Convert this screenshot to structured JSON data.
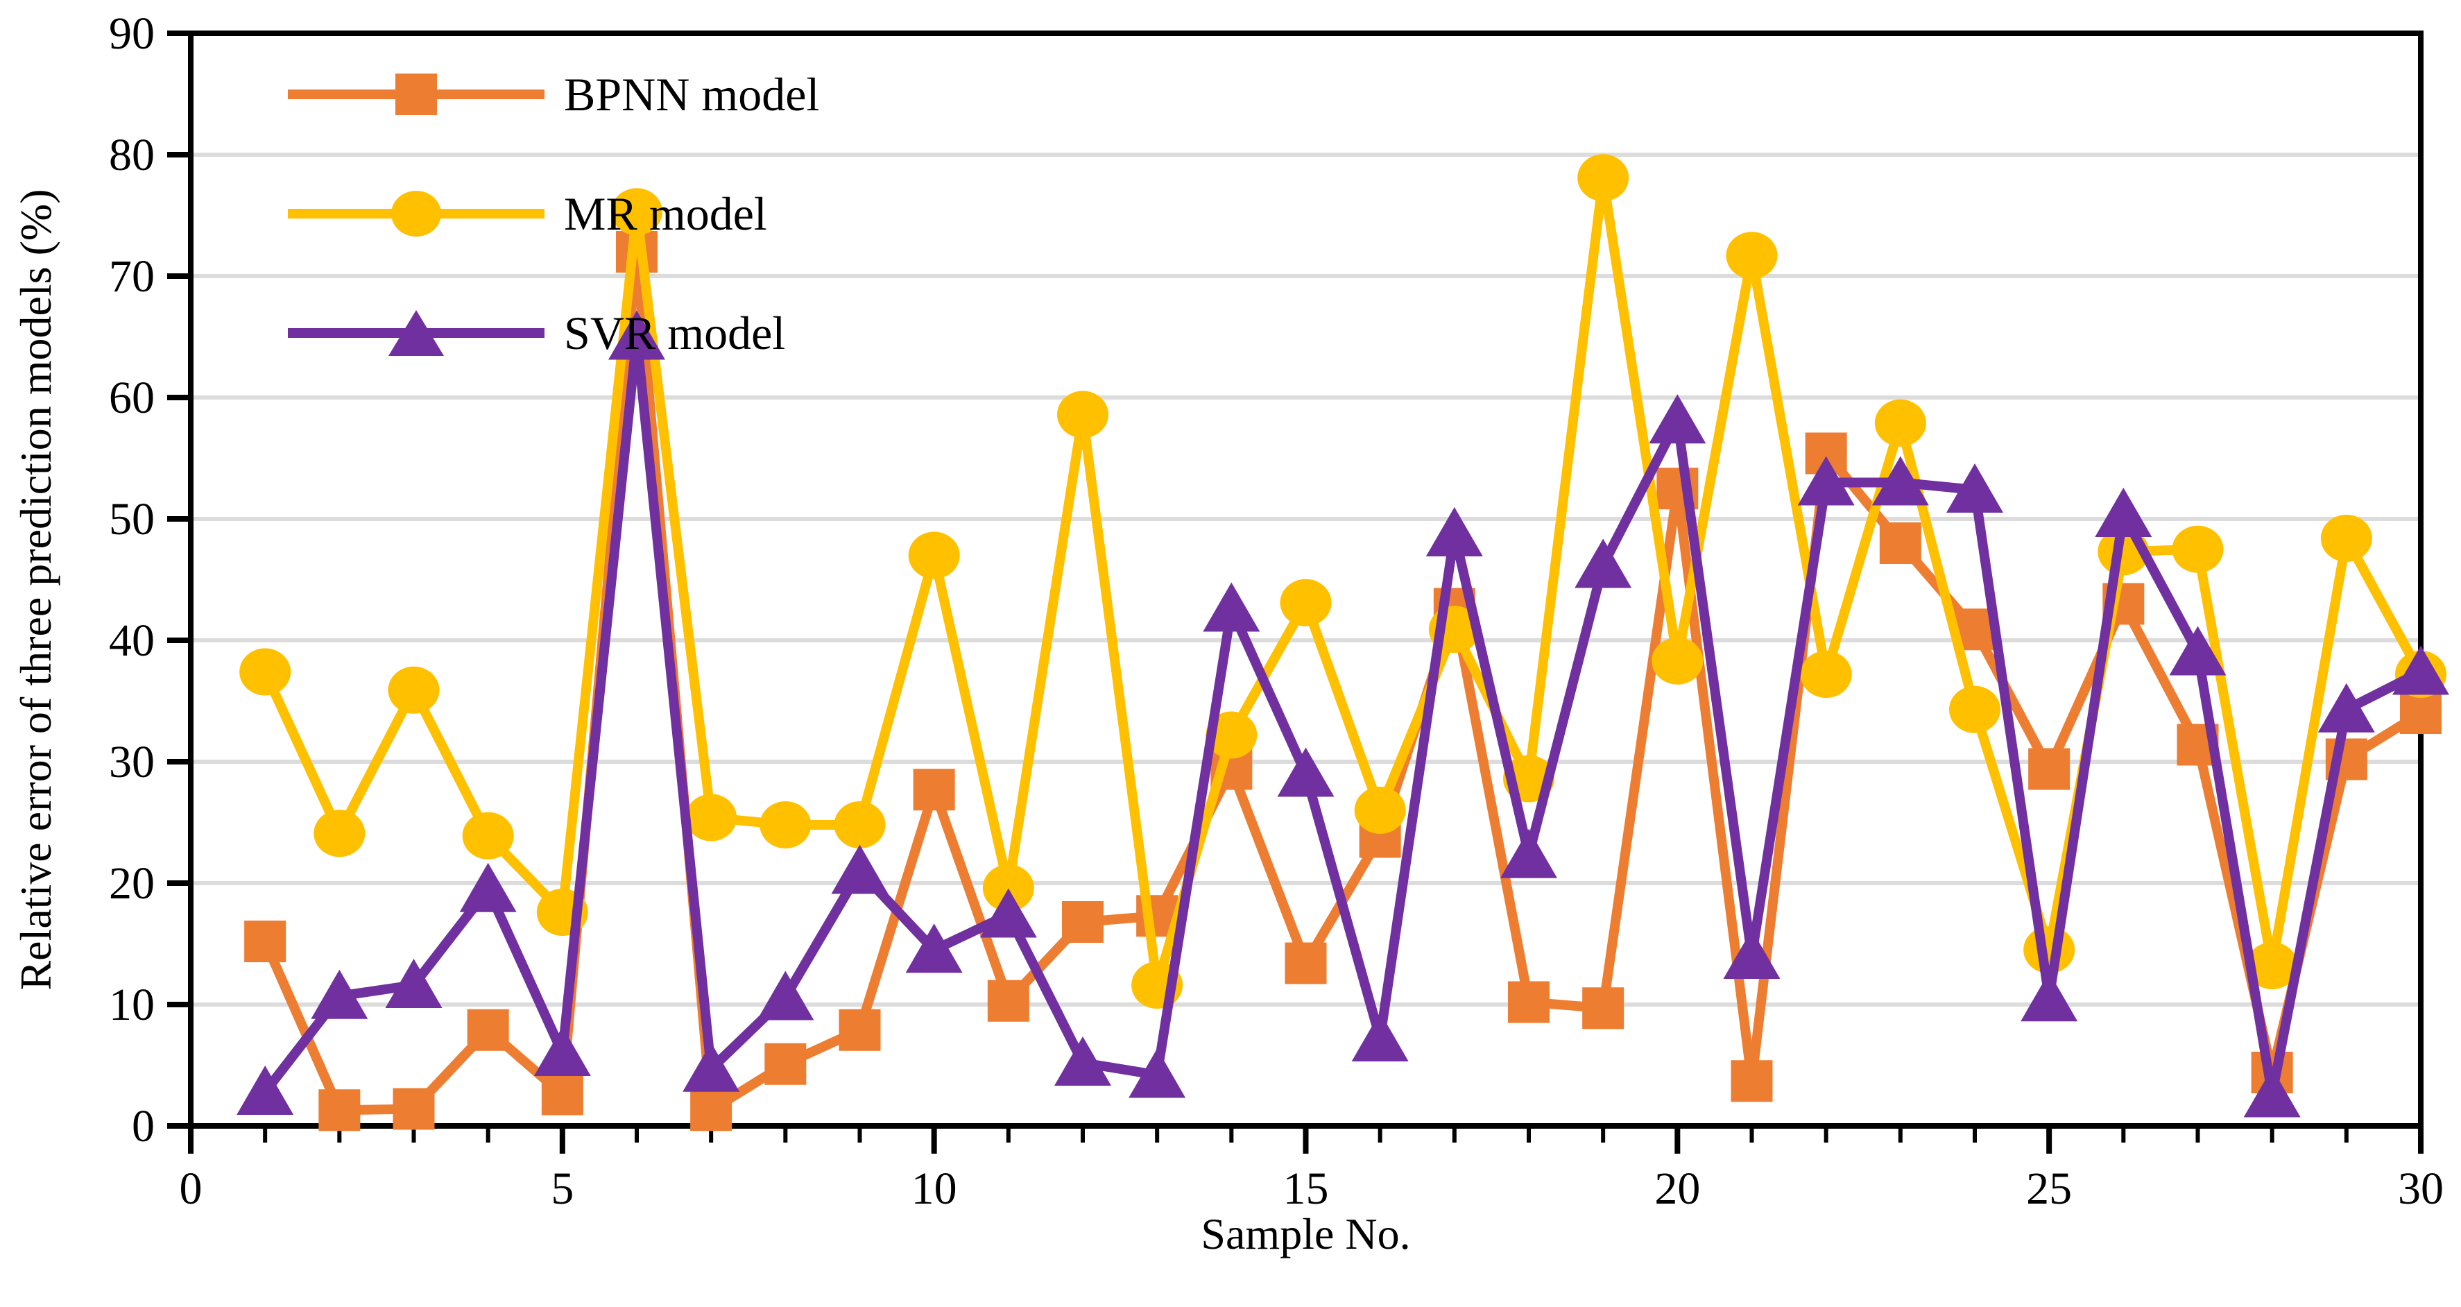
{
  "chart_data": {
    "type": "line",
    "title": "",
    "xlabel": "Sample No.",
    "ylabel": "Relative error of three prediction models (%)",
    "xlim": [
      0,
      30
    ],
    "ylim": [
      0,
      90
    ],
    "x_ticks": [
      0,
      5,
      10,
      15,
      20,
      25,
      30
    ],
    "y_ticks": [
      0,
      10,
      20,
      30,
      40,
      50,
      60,
      70,
      80,
      90
    ],
    "minor_x_tick_step": 1,
    "grid": "horizontal",
    "legend_position": "top-left-inside",
    "background_color": "#FFFFFF",
    "axis_color": "#000000",
    "gridline_color": "#DCDCDC",
    "text_color": "#000000",
    "x": [
      1,
      2,
      3,
      4,
      5,
      6,
      7,
      8,
      9,
      10,
      11,
      12,
      13,
      14,
      15,
      16,
      17,
      18,
      19,
      20,
      21,
      22,
      23,
      24,
      25,
      26,
      27,
      28,
      29,
      30
    ],
    "series": [
      {
        "name": "BPNN model",
        "color": "#ED7D31",
        "marker": "square",
        "values": [
          15.2,
          1.3,
          1.4,
          7.9,
          2.6,
          72.0,
          1.3,
          5.1,
          7.9,
          27.7,
          10.3,
          16.8,
          17.3,
          29.4,
          13.4,
          23.8,
          42.6,
          10.2,
          9.7,
          52.5,
          3.7,
          55.4,
          48.0,
          40.9,
          29.4,
          43.0,
          31.4,
          4.4,
          30.2,
          34.0
        ]
      },
      {
        "name": "MR model",
        "color": "#FFC000",
        "marker": "circle",
        "values": [
          37.4,
          24.1,
          35.9,
          23.9,
          17.6,
          75.3,
          25.4,
          24.8,
          24.8,
          47.0,
          19.6,
          58.6,
          11.6,
          32.2,
          43.1,
          26.0,
          40.9,
          28.6,
          78.1,
          38.3,
          71.7,
          37.2,
          57.9,
          34.3,
          14.5,
          47.3,
          47.5,
          13.2,
          48.4,
          37.2
        ]
      },
      {
        "name": "SVR model",
        "color": "#7030A0",
        "marker": "triangle",
        "values": [
          2.8,
          10.7,
          11.6,
          19.5,
          6.0,
          65.0,
          4.7,
          10.6,
          21.0,
          14.5,
          17.4,
          5.2,
          4.2,
          42.6,
          29.0,
          7.2,
          48.8,
          22.3,
          46.2,
          58.1,
          14.0,
          53.0,
          53.0,
          52.4,
          10.5,
          50.4,
          39.0,
          2.6,
          34.3,
          37.4
        ]
      }
    ]
  }
}
